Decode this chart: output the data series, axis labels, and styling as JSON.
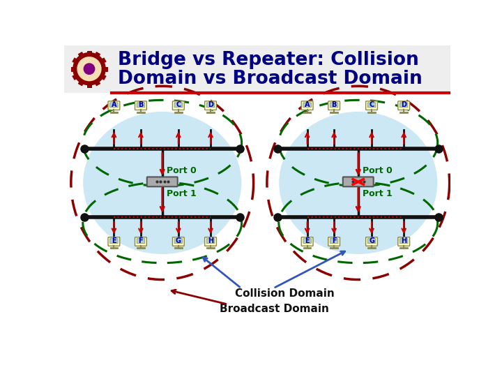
{
  "title_line1": "Bridge vs Repeater: Collision",
  "title_line2": "Domain vs Broadcast Domain",
  "title_color": "#000080",
  "bg_color": "#ffffff",
  "panel_bg": "#cce8f4",
  "computer_fill": "#ffffc0",
  "computer_stroke": "#888855",
  "bus_color": "#111111",
  "signal_color": "#cc0000",
  "device_fill": "#aaaaaa",
  "device_stroke": "#555555",
  "green_dash": "#006600",
  "red_dash": "#8b0000",
  "blue_arrow": "#3355bb",
  "dark_red_arrow": "#8b0000",
  "collision_label": "Collision Domain",
  "broadcast_label": "Broadcast Domain",
  "port0_label": "Port 0",
  "port1_label": "Port 1",
  "top_nodes": [
    "A",
    "B",
    "C",
    "D"
  ],
  "bot_nodes": [
    "E",
    "F",
    "G",
    "H"
  ],
  "node_label_color": "#000099"
}
